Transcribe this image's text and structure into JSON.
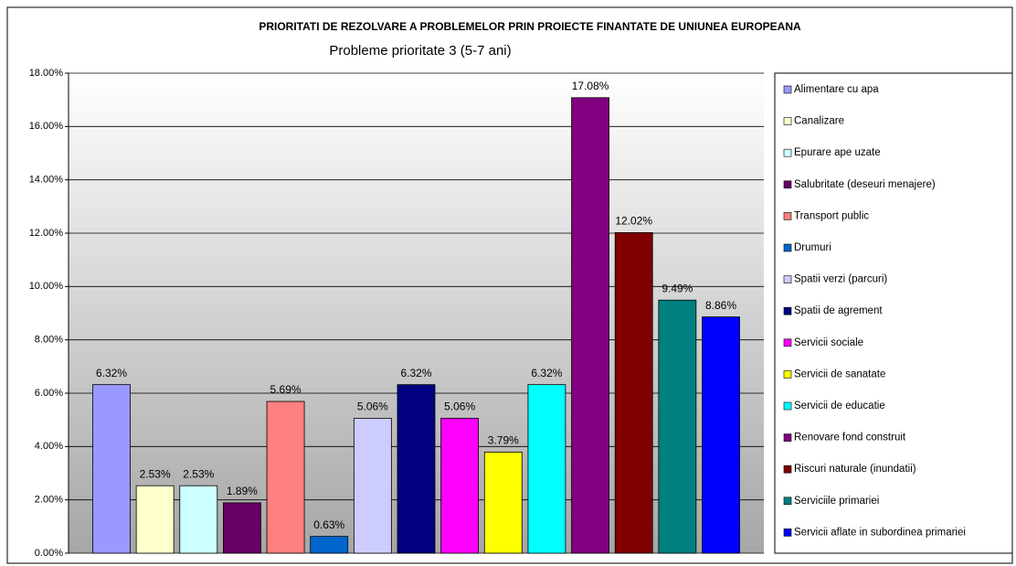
{
  "chart_data": {
    "type": "bar",
    "title": "PRIORITATI DE REZOLVARE A PROBLEMELOR PRIN PROIECTE FINANTATE DE UNIUNEA EUROPEANA",
    "subtitle": "Probleme prioritate 3 (5-7 ani)",
    "ylim": [
      0,
      18
    ],
    "yticks": [
      {
        "value": 0,
        "label": "0.00%"
      },
      {
        "value": 2,
        "label": "2.00%"
      },
      {
        "value": 4,
        "label": "4.00%"
      },
      {
        "value": 6,
        "label": "6.00%"
      },
      {
        "value": 8,
        "label": "8.00%"
      },
      {
        "value": 10,
        "label": "10.00%"
      },
      {
        "value": 12,
        "label": "12.00%"
      },
      {
        "value": 14,
        "label": "14.00%"
      },
      {
        "value": 16,
        "label": "16.00%"
      },
      {
        "value": 18,
        "label": "18.00%"
      }
    ],
    "grid": true,
    "legend": "right",
    "series": [
      {
        "name": "Alimentare cu apa",
        "color": "#9999ff",
        "values": [
          6.32
        ],
        "value_labels": [
          "6.32%"
        ]
      },
      {
        "name": "Canalizare",
        "color": "#ffffcc",
        "values": [
          2.53
        ],
        "value_labels": [
          "2.53%"
        ]
      },
      {
        "name": "Epurare ape uzate",
        "color": "#ccffff",
        "values": [
          2.53
        ],
        "value_labels": [
          "2.53%"
        ]
      },
      {
        "name": "Salubritate (deseuri menajere)",
        "color": "#660066",
        "values": [
          1.89
        ],
        "value_labels": [
          "1.89%"
        ]
      },
      {
        "name": "Transport public",
        "color": "#ff8080",
        "values": [
          5.69
        ],
        "value_labels": [
          "5.69%"
        ]
      },
      {
        "name": "Drumuri",
        "color": "#0066cc",
        "values": [
          0.63
        ],
        "value_labels": [
          "0.63%"
        ]
      },
      {
        "name": "Spatii verzi (parcuri)",
        "color": "#ccccff",
        "values": [
          5.06
        ],
        "value_labels": [
          "5.06%"
        ]
      },
      {
        "name": "Spatii de agrement",
        "color": "#000080",
        "values": [
          6.32
        ],
        "value_labels": [
          "6.32%"
        ]
      },
      {
        "name": "Servicii sociale",
        "color": "#ff00ff",
        "values": [
          5.06
        ],
        "value_labels": [
          "5.06%"
        ]
      },
      {
        "name": "Servicii de sanatate",
        "color": "#ffff00",
        "values": [
          3.79
        ],
        "value_labels": [
          "3.79%"
        ]
      },
      {
        "name": "Servicii de educatie",
        "color": "#00ffff",
        "values": [
          6.32
        ],
        "value_labels": [
          "6.32%"
        ]
      },
      {
        "name": "Renovare fond construit",
        "color": "#800080",
        "values": [
          17.08
        ],
        "value_labels": [
          "17.08%"
        ]
      },
      {
        "name": "Riscuri naturale (inundatii)",
        "color": "#800000",
        "values": [
          12.02
        ],
        "value_labels": [
          "12.02%"
        ]
      },
      {
        "name": "Serviciile primariei",
        "color": "#008080",
        "values": [
          9.49
        ],
        "value_labels": [
          "9.49%"
        ]
      },
      {
        "name": "Servicii aflate in subordinea primariei",
        "color": "#0000ff",
        "values": [
          8.86
        ],
        "value_labels": [
          "8.86%"
        ]
      }
    ]
  }
}
